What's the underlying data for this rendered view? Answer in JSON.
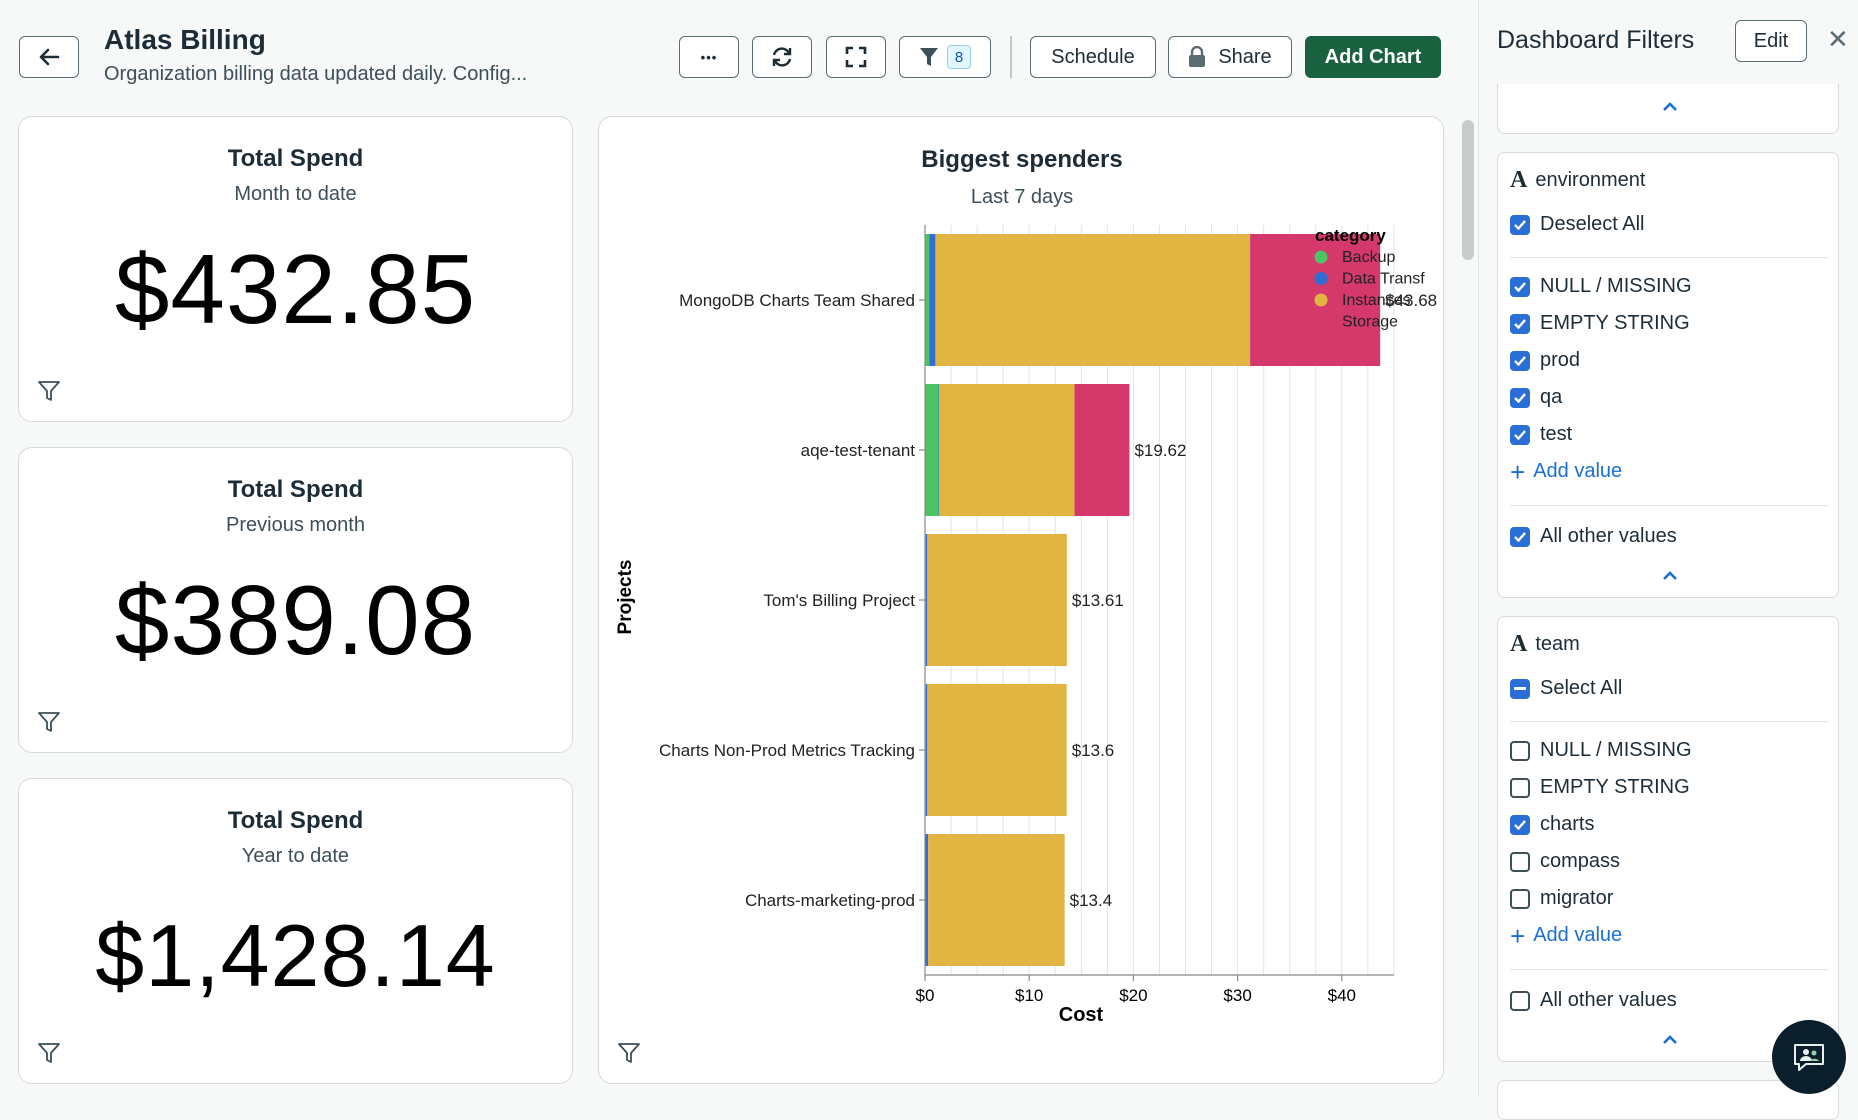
{
  "header": {
    "title": "Atlas Billing",
    "subtitle": "Organization billing data updated daily. Config...",
    "more_label": "•••",
    "filter_count": "8",
    "schedule_label": "Schedule",
    "share_label": "Share",
    "add_chart_label": "Add Chart"
  },
  "kpis": [
    {
      "title": "Total Spend",
      "subtitle": "Month to date",
      "value": "$432.85"
    },
    {
      "title": "Total Spend",
      "subtitle": "Previous month",
      "value": "$389.08"
    },
    {
      "title": "Total Spend",
      "subtitle": "Year to date",
      "value": "$1,428.14"
    }
  ],
  "chart_data": {
    "type": "bar",
    "orientation": "horizontal",
    "stacked": true,
    "title": "Biggest spenders",
    "subtitle": "Last 7 days",
    "xlabel": "Cost",
    "ylabel": "Projects",
    "xlim": [
      0,
      45
    ],
    "xticks": [
      0,
      10,
      20,
      30,
      40
    ],
    "xtick_labels": [
      "$0",
      "$10",
      "$20",
      "$30",
      "$40"
    ],
    "legend_title": "category",
    "legend_position": "top-right",
    "categories": [
      "MongoDB Charts Team Shared",
      "aqe-test-tenant",
      "Tom's Billing Project",
      "Charts Non-Prod Metrics Tracking",
      "Charts-marketing-prod"
    ],
    "series": [
      {
        "name": "Backup",
        "color": "#4cc463",
        "values": [
          0.4,
          1.3,
          0.1,
          0.1,
          0.05
        ]
      },
      {
        "name": "Data Transf",
        "color": "#2f6fd4",
        "values": [
          0.6,
          0.05,
          0.1,
          0.1,
          0.25
        ]
      },
      {
        "name": "Instances",
        "color": "#e2b441",
        "values": [
          30.2,
          13.0,
          13.41,
          13.4,
          13.1
        ]
      },
      {
        "name": "Storage",
        "color": "#d5386b",
        "values": [
          12.48,
          5.27,
          0,
          0,
          0
        ]
      }
    ],
    "totals": [
      "$43.68",
      "$19.62",
      "$13.61",
      "$13.6",
      "$13.4"
    ]
  },
  "filters_panel": {
    "title": "Dashboard Filters",
    "edit_label": "Edit",
    "environment": {
      "field": "environment",
      "select_all_label": "Deselect All",
      "values": [
        {
          "label": "NULL / MISSING",
          "checked": true
        },
        {
          "label": "EMPTY STRING",
          "checked": true
        },
        {
          "label": "prod",
          "checked": true
        },
        {
          "label": "qa",
          "checked": true
        },
        {
          "label": "test",
          "checked": true
        }
      ],
      "add_value_label": "Add value",
      "other_label": "All other values",
      "other_checked": true
    },
    "team": {
      "field": "team",
      "select_all_label": "Select All",
      "values": [
        {
          "label": "NULL / MISSING",
          "checked": false
        },
        {
          "label": "EMPTY STRING",
          "checked": false
        },
        {
          "label": "charts",
          "checked": true
        },
        {
          "label": "compass",
          "checked": false
        },
        {
          "label": "migrator",
          "checked": false
        }
      ],
      "add_value_label": "Add value",
      "other_label": "All other values",
      "other_checked": false
    }
  }
}
